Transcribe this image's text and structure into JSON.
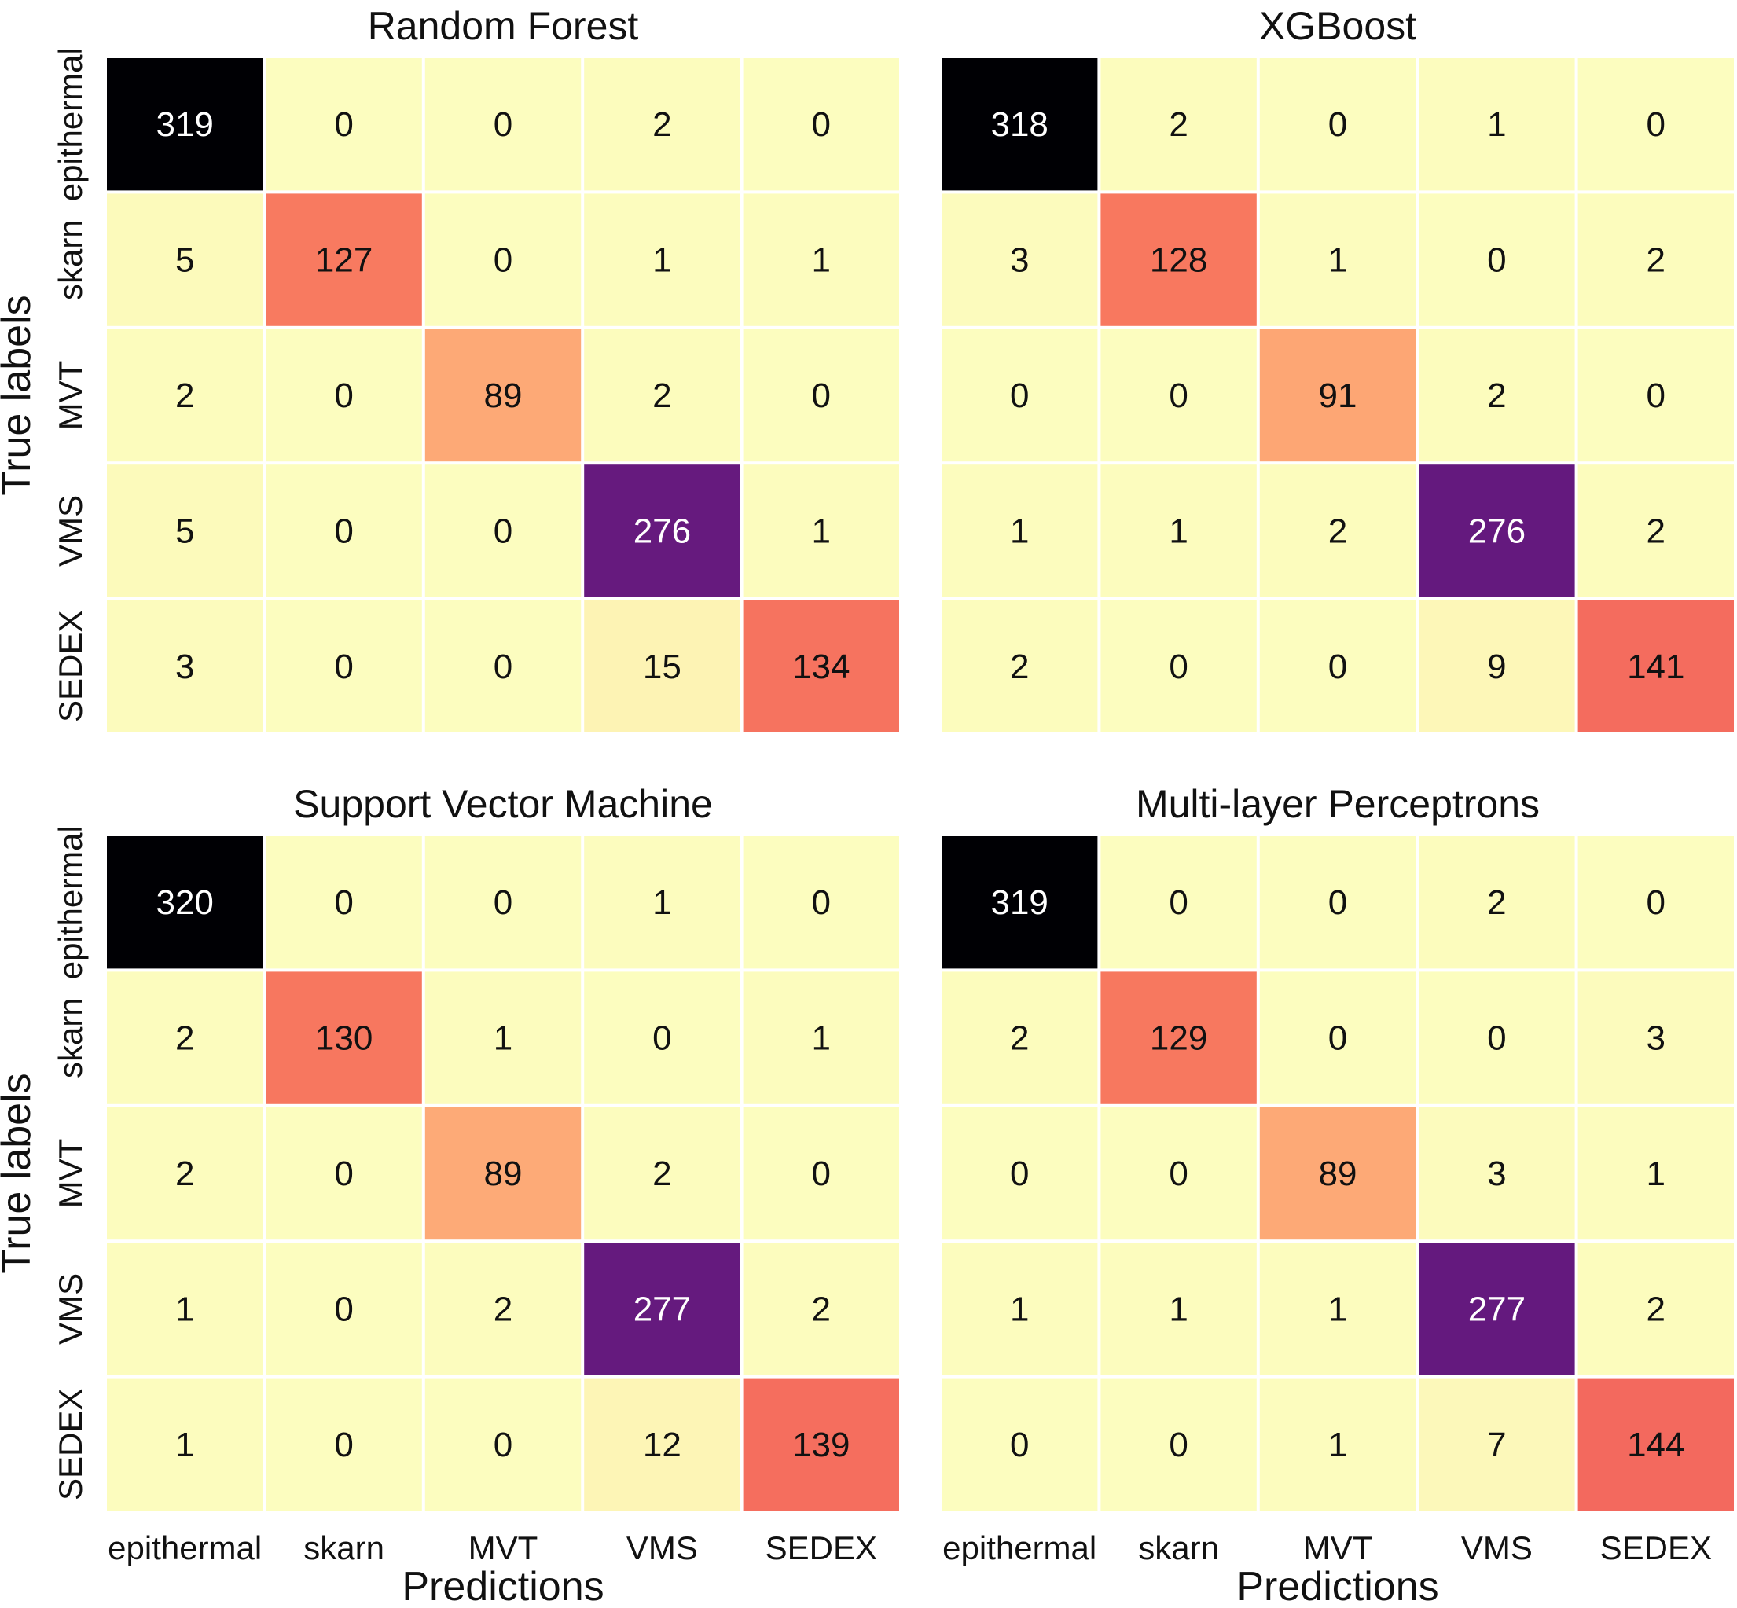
{
  "chart_data": [
    {
      "type": "heatmap",
      "title": "Random Forest",
      "xlabel": "Predictions",
      "ylabel": "True labels",
      "x_categories": [
        "epithermal",
        "skarn",
        "MVT",
        "VMS",
        "SEDEX"
      ],
      "y_categories": [
        "epithermal",
        "skarn",
        "MVT",
        "VMS",
        "SEDEX"
      ],
      "matrix": [
        [
          319,
          0,
          0,
          2,
          0
        ],
        [
          5,
          127,
          0,
          1,
          1
        ],
        [
          2,
          0,
          89,
          2,
          0
        ],
        [
          5,
          0,
          0,
          276,
          1
        ],
        [
          3,
          0,
          0,
          15,
          134
        ]
      ],
      "colormap": "magma_r"
    },
    {
      "type": "heatmap",
      "title": "XGBoost",
      "xlabel": "",
      "ylabel": "",
      "x_categories": [
        "epithermal",
        "skarn",
        "MVT",
        "VMS",
        "SEDEX"
      ],
      "y_categories": [
        "epithermal",
        "skarn",
        "MVT",
        "VMS",
        "SEDEX"
      ],
      "matrix": [
        [
          318,
          2,
          0,
          1,
          0
        ],
        [
          3,
          128,
          1,
          0,
          2
        ],
        [
          0,
          0,
          91,
          2,
          0
        ],
        [
          1,
          1,
          2,
          276,
          2
        ],
        [
          2,
          0,
          0,
          9,
          141
        ]
      ],
      "colormap": "magma_r"
    },
    {
      "type": "heatmap",
      "title": "Support Vector Machine",
      "xlabel": "Predictions",
      "ylabel": "True labels",
      "x_categories": [
        "epithermal",
        "skarn",
        "MVT",
        "VMS",
        "SEDEX"
      ],
      "y_categories": [
        "epithermal",
        "skarn",
        "MVT",
        "VMS",
        "SEDEX"
      ],
      "matrix": [
        [
          320,
          0,
          0,
          1,
          0
        ],
        [
          2,
          130,
          1,
          0,
          1
        ],
        [
          2,
          0,
          89,
          2,
          0
        ],
        [
          1,
          0,
          2,
          277,
          2
        ],
        [
          1,
          0,
          0,
          12,
          139
        ]
      ],
      "colormap": "magma_r"
    },
    {
      "type": "heatmap",
      "title": "Multi-layer Perceptrons",
      "xlabel": "Predictions",
      "ylabel": "",
      "x_categories": [
        "epithermal",
        "skarn",
        "MVT",
        "VMS",
        "SEDEX"
      ],
      "y_categories": [
        "epithermal",
        "skarn",
        "MVT",
        "VMS",
        "SEDEX"
      ],
      "matrix": [
        [
          319,
          0,
          0,
          2,
          0
        ],
        [
          2,
          129,
          0,
          0,
          3
        ],
        [
          0,
          0,
          89,
          3,
          1
        ],
        [
          1,
          1,
          1,
          277,
          2
        ],
        [
          0,
          0,
          1,
          7,
          144
        ]
      ],
      "colormap": "magma_r"
    }
  ]
}
